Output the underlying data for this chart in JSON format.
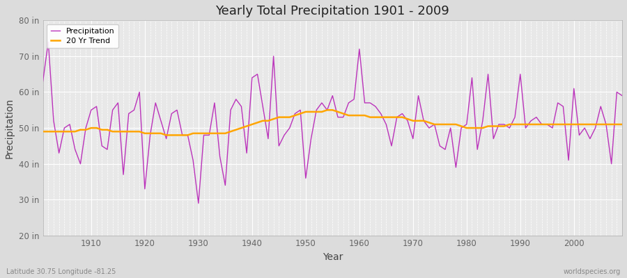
{
  "title": "Yearly Total Precipitation 1901 - 2009",
  "xlabel": "Year",
  "ylabel": "Precipitation",
  "xlim": [
    1901,
    2009
  ],
  "ylim": [
    20,
    80
  ],
  "yticks": [
    20,
    30,
    40,
    50,
    60,
    70,
    80
  ],
  "ytick_labels": [
    "20 in",
    "30 in",
    "40 in",
    "50 in",
    "60 in",
    "70 in",
    "80 in"
  ],
  "xticks": [
    1910,
    1920,
    1930,
    1940,
    1950,
    1960,
    1970,
    1980,
    1990,
    2000
  ],
  "footer_left": "Latitude 30.75 Longitude -81.25",
  "footer_right": "worldspecies.org",
  "precip_color": "#BB33BB",
  "trend_color": "#FFA500",
  "fig_bg_color": "#DCDCDC",
  "plot_bg_color": "#E8E8E8",
  "grid_color": "#FFFFFF",
  "years": [
    1901,
    1902,
    1903,
    1904,
    1905,
    1906,
    1907,
    1908,
    1909,
    1910,
    1911,
    1912,
    1913,
    1914,
    1915,
    1916,
    1917,
    1918,
    1919,
    1920,
    1921,
    1922,
    1923,
    1924,
    1925,
    1926,
    1927,
    1928,
    1929,
    1930,
    1931,
    1932,
    1933,
    1934,
    1935,
    1936,
    1937,
    1938,
    1939,
    1940,
    1941,
    1942,
    1943,
    1944,
    1945,
    1946,
    1947,
    1948,
    1949,
    1950,
    1951,
    1952,
    1953,
    1954,
    1955,
    1956,
    1957,
    1958,
    1959,
    1960,
    1961,
    1962,
    1963,
    1964,
    1965,
    1966,
    1967,
    1968,
    1969,
    1970,
    1971,
    1972,
    1973,
    1974,
    1975,
    1976,
    1977,
    1978,
    1979,
    1980,
    1981,
    1982,
    1983,
    1984,
    1985,
    1986,
    1987,
    1988,
    1989,
    1990,
    1991,
    1992,
    1993,
    1994,
    1995,
    1996,
    1997,
    1998,
    1999,
    2000,
    2001,
    2002,
    2003,
    2004,
    2005,
    2006,
    2007,
    2008,
    2009
  ],
  "precipitation": [
    63,
    74,
    52,
    43,
    50,
    51,
    44,
    40,
    50,
    55,
    56,
    45,
    44,
    55,
    57,
    37,
    54,
    55,
    60,
    33,
    48,
    57,
    52,
    47,
    54,
    55,
    48,
    48,
    41,
    29,
    48,
    48,
    57,
    42,
    34,
    55,
    58,
    56,
    43,
    64,
    65,
    56,
    47,
    70,
    45,
    48,
    50,
    54,
    55,
    36,
    47,
    55,
    57,
    55,
    59,
    53,
    53,
    57,
    58,
    72,
    57,
    57,
    56,
    54,
    51,
    45,
    53,
    54,
    52,
    47,
    59,
    52,
    50,
    51,
    45,
    44,
    50,
    39,
    50,
    51,
    64,
    44,
    52,
    65,
    47,
    51,
    51,
    50,
    53,
    65,
    50,
    52,
    53,
    51,
    51,
    50,
    57,
    56,
    41,
    61,
    48,
    50,
    47,
    50,
    56,
    51,
    40,
    60,
    59
  ],
  "trend": [
    49.0,
    49.0,
    49.0,
    49.0,
    49.0,
    49.0,
    49.0,
    49.5,
    49.5,
    50.0,
    50.0,
    49.5,
    49.5,
    49.0,
    49.0,
    49.0,
    49.0,
    49.0,
    49.0,
    48.5,
    48.5,
    48.5,
    48.5,
    48.0,
    48.0,
    48.0,
    48.0,
    48.0,
    48.5,
    48.5,
    48.5,
    48.5,
    48.5,
    48.5,
    48.5,
    49.0,
    49.5,
    50.0,
    50.5,
    51.0,
    51.5,
    52.0,
    52.0,
    52.5,
    53.0,
    53.0,
    53.0,
    53.5,
    54.0,
    54.5,
    54.5,
    54.5,
    54.5,
    55.0,
    55.0,
    54.5,
    54.0,
    53.5,
    53.5,
    53.5,
    53.5,
    53.0,
    53.0,
    53.0,
    53.0,
    53.0,
    53.0,
    53.0,
    52.5,
    52.0,
    52.0,
    52.0,
    51.5,
    51.0,
    51.0,
    51.0,
    51.0,
    51.0,
    50.5,
    50.0,
    50.0,
    50.0,
    50.0,
    50.5,
    50.5,
    50.5,
    50.5,
    51.0,
    51.0,
    51.0,
    51.0,
    51.0,
    51.0,
    51.0,
    51.0,
    51.0,
    51.0,
    51.0,
    51.0,
    51.0,
    51.0,
    51.0,
    51.0,
    51.0,
    51.0,
    51.0,
    51.0,
    51.0,
    51.0
  ]
}
